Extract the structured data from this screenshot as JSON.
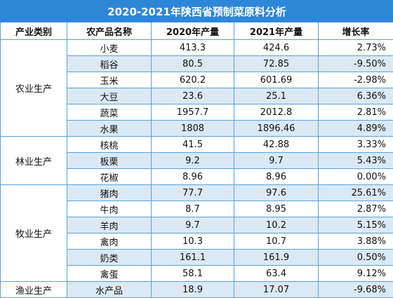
{
  "title": "2020-2021年陕西省预制菜原料分析",
  "headers": [
    "产业类别",
    "农产品名称",
    "2020年产量",
    "2021年产量",
    "增长率"
  ],
  "groups": [
    {
      "category": "农业生产",
      "rows": [
        {
          "name": "小麦",
          "y2020": "413.3",
          "y2021": "424.6",
          "growth": "2.73%"
        },
        {
          "name": "稻谷",
          "y2020": "80.5",
          "y2021": "72.85",
          "growth": "-9.50%"
        },
        {
          "name": "玉米",
          "y2020": "620.2",
          "y2021": "601.69",
          "growth": "-2.98%"
        },
        {
          "name": "大豆",
          "y2020": "23.6",
          "y2021": "25.1",
          "growth": "6.36%"
        },
        {
          "name": "蔬菜",
          "y2020": "1957.7",
          "y2021": "2012.8",
          "growth": "2.81%"
        },
        {
          "name": "水果",
          "y2020": "1808",
          "y2021": "1896.46",
          "growth": "4.89%"
        }
      ]
    },
    {
      "category": "林业生产",
      "rows": [
        {
          "name": "核桃",
          "y2020": "41.5",
          "y2021": "42.88",
          "growth": "3.33%"
        },
        {
          "name": "板栗",
          "y2020": "9.2",
          "y2021": "9.7",
          "growth": "5.43%"
        },
        {
          "name": "花椒",
          "y2020": "8.96",
          "y2021": "8.96",
          "growth": "0.00%"
        }
      ]
    },
    {
      "category": "牧业生产",
      "rows": [
        {
          "name": "猪肉",
          "y2020": "77.7",
          "y2021": "97.6",
          "growth": "25.61%"
        },
        {
          "name": "牛肉",
          "y2020": "8.7",
          "y2021": "8.95",
          "growth": "2.87%"
        },
        {
          "name": "羊肉",
          "y2020": "9.7",
          "y2021": "10.2",
          "growth": "5.15%"
        },
        {
          "name": "禽肉",
          "y2020": "10.3",
          "y2021": "10.7",
          "growth": "3.88%"
        },
        {
          "name": "奶类",
          "y2020": "161.1",
          "y2021": "161.9",
          "growth": "0.50%"
        },
        {
          "name": "禽蛋",
          "y2020": "58.1",
          "y2021": "63.4",
          "growth": "9.12%"
        }
      ]
    },
    {
      "category": "渔业生产",
      "rows": [
        {
          "name": "水产品",
          "y2020": "18.9",
          "y2021": "17.07",
          "growth": "-9.68%"
        }
      ]
    }
  ],
  "colors": {
    "title_bg": "#2e86d9",
    "border": "#5aa0d8",
    "zebra": "#dbe9f5"
  }
}
